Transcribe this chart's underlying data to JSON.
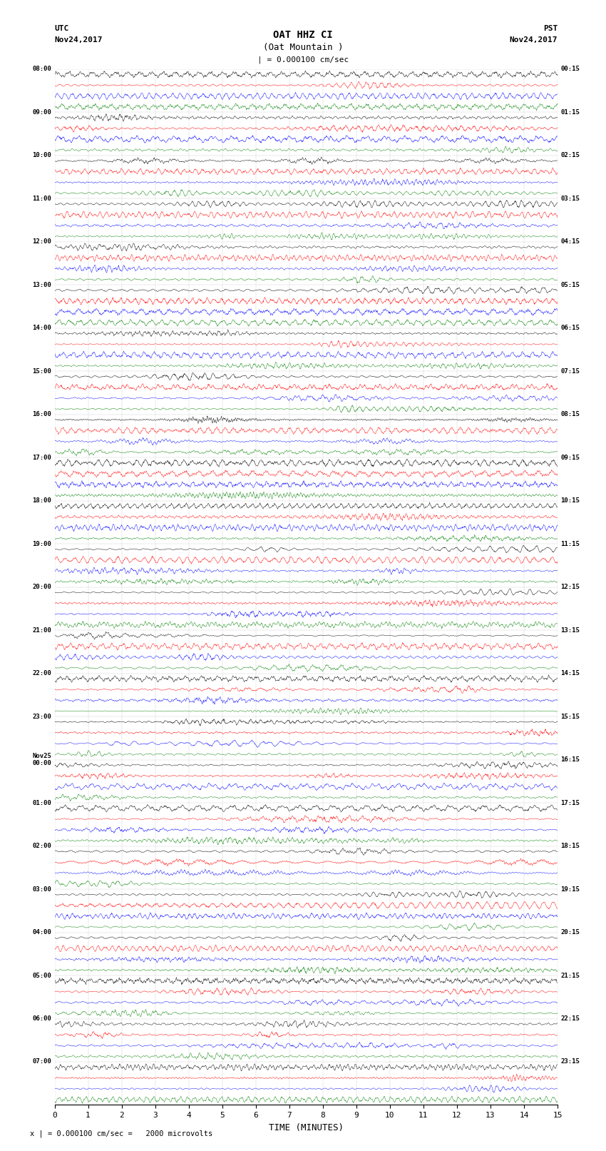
{
  "title_line1": "OAT HHZ CI",
  "title_line2": "(Oat Mountain )",
  "scale_label": "| = 0.000100 cm/sec",
  "bottom_label": "x | = 0.000100 cm/sec =   2000 microvolts",
  "utc_label": "UTC",
  "utc_date": "Nov24,2017",
  "pst_label": "PST",
  "pst_date": "Nov24,2017",
  "xlabel": "TIME (MINUTES)",
  "left_times": [
    "08:00",
    "09:00",
    "10:00",
    "11:00",
    "12:00",
    "13:00",
    "14:00",
    "15:00",
    "16:00",
    "17:00",
    "18:00",
    "19:00",
    "20:00",
    "21:00",
    "22:00",
    "23:00",
    "Nov25\n00:00",
    "01:00",
    "02:00",
    "03:00",
    "04:00",
    "05:00",
    "06:00",
    "07:00"
  ],
  "right_times": [
    "00:15",
    "01:15",
    "02:15",
    "03:15",
    "04:15",
    "05:15",
    "06:15",
    "07:15",
    "08:15",
    "09:15",
    "10:15",
    "11:15",
    "12:15",
    "13:15",
    "14:15",
    "15:15",
    "16:15",
    "17:15",
    "18:15",
    "19:15",
    "20:15",
    "21:15",
    "22:15",
    "23:15"
  ],
  "n_rows": 24,
  "traces_per_row": 4,
  "colors": [
    "black",
    "red",
    "blue",
    "green"
  ],
  "bg_color": "white",
  "time_range": [
    0,
    15
  ],
  "fig_width": 8.5,
  "fig_height": 16.13
}
